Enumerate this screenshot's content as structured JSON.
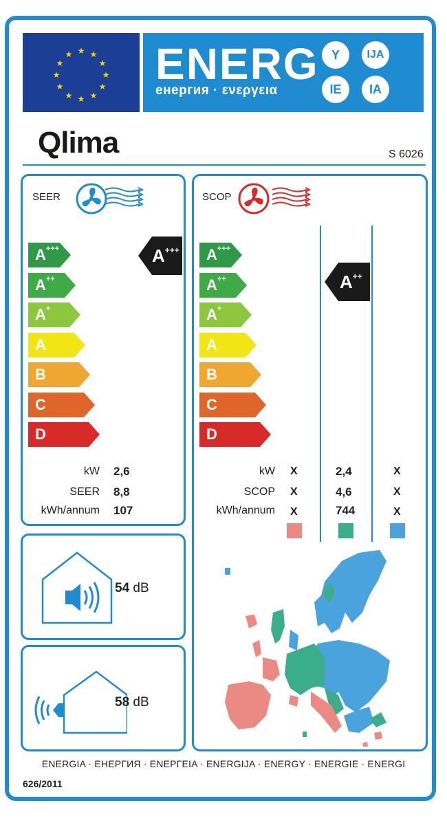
{
  "header": {
    "energ": "ENERG",
    "subtitle": "енергия · ενεργεια",
    "lang_codes": [
      "Y",
      "IJA",
      "IE",
      "IA"
    ],
    "brand": "Qlima",
    "model": "S 6026"
  },
  "seer_panel": {
    "title": "SEER",
    "classes": [
      {
        "letter": "A",
        "plus": "+++",
        "color": "#2e9a47"
      },
      {
        "letter": "A",
        "plus": "++",
        "color": "#3fab46"
      },
      {
        "letter": "A",
        "plus": "+",
        "color": "#8dc63f"
      },
      {
        "letter": "A",
        "plus": "",
        "color": "#f2e516"
      },
      {
        "letter": "B",
        "plus": "",
        "color": "#f0a731"
      },
      {
        "letter": "C",
        "plus": "",
        "color": "#e0652b"
      },
      {
        "letter": "D",
        "plus": "",
        "color": "#d92a2a"
      }
    ],
    "indicator": {
      "letter": "A",
      "plus": "+++"
    },
    "rows": [
      {
        "label": "kW",
        "value": "2,6"
      },
      {
        "label": "SEER",
        "value": "8,8"
      },
      {
        "label": "kWh/annum",
        "value": "107"
      }
    ]
  },
  "scop_panel": {
    "title": "SCOP",
    "indicator": {
      "letter": "A",
      "plus": "++"
    },
    "rows": [
      {
        "label": "kW",
        "values": [
          "X",
          "2,4",
          "X"
        ]
      },
      {
        "label": "SCOP",
        "values": [
          "X",
          "4,6",
          "X"
        ]
      },
      {
        "label": "kWh/annum",
        "values": [
          "X",
          "744",
          "X"
        ]
      }
    ],
    "zone_colors": [
      "#ea8a82",
      "#3aad8a",
      "#4aa3dc"
    ]
  },
  "noise_indoor": {
    "value": "54",
    "unit": "dB"
  },
  "noise_outdoor": {
    "value": "58",
    "unit": "dB"
  },
  "footer": {
    "languages": "ENERGIA · ЕНЕРГИЯ · ΕΝΕΡΓΕΙΑ · ENERGIJA · ENERGY · ENERGIE · ENERGI",
    "regulation": "626/2011"
  },
  "icons": [
    "eu-flag-icon",
    "fan-icon",
    "airflow-icon",
    "speaker-icon",
    "house-icon",
    "europe-map-icon"
  ]
}
